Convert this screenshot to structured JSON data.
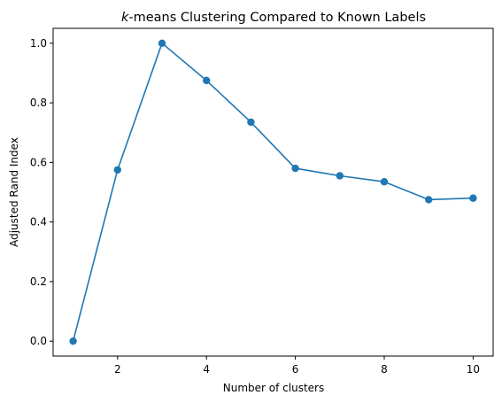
{
  "chart_data": {
    "type": "line",
    "title_italic": "k",
    "title_rest": "-means Clustering Compared to Known Labels",
    "xlabel": "Number of clusters",
    "ylabel": "Adjusted Rand Index",
    "xlim": [
      0.55,
      10.45
    ],
    "ylim": [
      -0.05,
      1.05
    ],
    "xticks": [
      2,
      4,
      6,
      8,
      10
    ],
    "yticks": [
      0.0,
      0.2,
      0.4,
      0.6,
      0.8,
      1.0
    ],
    "ytick_labels": [
      "0.0",
      "0.2",
      "0.4",
      "0.6",
      "0.8",
      "1.0"
    ],
    "grid": false,
    "legend": "none",
    "series": [
      {
        "color": "#1f77b4",
        "marker": "circle",
        "x": [
          1,
          2,
          3,
          4,
          5,
          6,
          7,
          8,
          9,
          10
        ],
        "y": [
          0.0,
          0.575,
          1.0,
          0.875,
          0.735,
          0.58,
          0.555,
          0.535,
          0.475,
          0.48
        ]
      }
    ]
  }
}
